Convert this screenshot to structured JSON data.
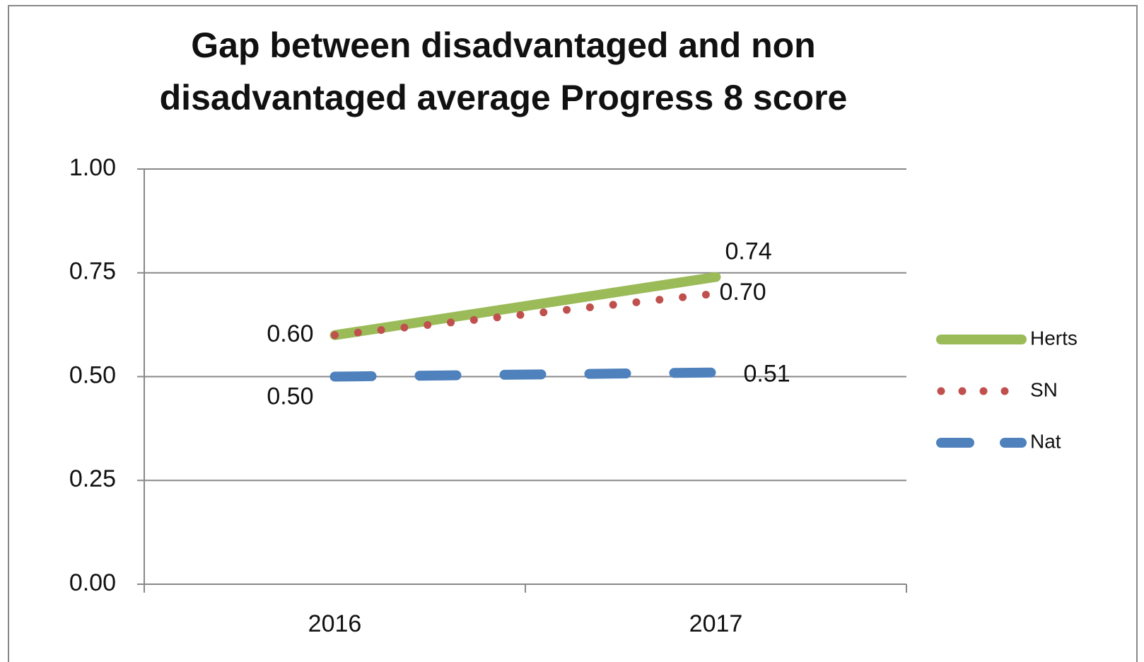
{
  "chart_data": {
    "type": "line",
    "title": [
      "Gap between disadvantaged and non",
      "disadvantaged average Progress 8 score"
    ],
    "categories": [
      "2016",
      "2017"
    ],
    "series": [
      {
        "name": "Herts",
        "color": "#9bbb59",
        "values": [
          0.6,
          0.74
        ],
        "value_labels": [
          "0.60",
          "0.74"
        ]
      },
      {
        "name": "SN",
        "color": "#c0504d",
        "values": [
          0.6,
          0.7
        ],
        "value_labels": [
          null,
          "0.70"
        ]
      },
      {
        "name": "Nat",
        "color": "#4f81bd",
        "values": [
          0.5,
          0.51
        ],
        "value_labels": [
          "0.50",
          "0.51"
        ]
      }
    ],
    "ylim": [
      0,
      1
    ],
    "yticks": [
      {
        "value": 0,
        "label": "0.00"
      },
      {
        "value": 0.25,
        "label": "0.25"
      },
      {
        "value": 0.5,
        "label": "0.50"
      },
      {
        "value": 0.75,
        "label": "0.75"
      },
      {
        "value": 1,
        "label": "1.00"
      }
    ],
    "grid": true,
    "legend": "right"
  }
}
